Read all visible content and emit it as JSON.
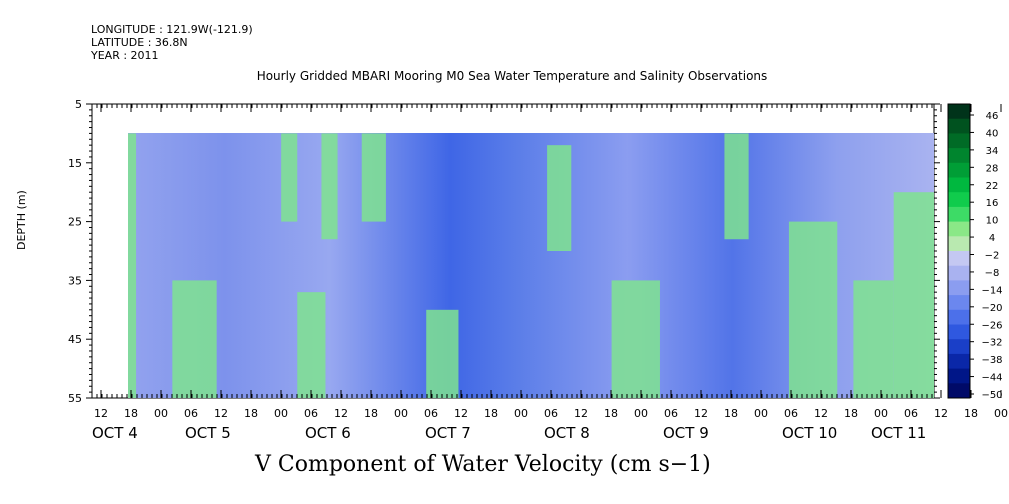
{
  "header": {
    "longitude": "LONGITUDE : 121.9W(-121.9)",
    "latitude": "LATITUDE : 36.8N",
    "year": "YEAR : 2011"
  },
  "chart_data": {
    "type": "heatmap",
    "title": "Hourly Gridded MBARI Mooring M0 Sea Water Temperature and Salinity Observations",
    "variable_title": "V Component of Water Velocity (cm s−1)",
    "ylabel": "DEPTH (m)",
    "ylim": [
      5,
      55
    ],
    "y_inverted": true,
    "y_ticks": [
      5,
      15,
      25,
      35,
      45,
      55
    ],
    "data_depth_range": [
      10,
      55
    ],
    "hour_ticks": [
      "12",
      "18",
      "00",
      "06",
      "12",
      "18",
      "00",
      "06",
      "12",
      "18",
      "00",
      "06",
      "12",
      "18",
      "00",
      "06",
      "12",
      "18",
      "00",
      "06",
      "12",
      "18",
      "00",
      "06",
      "12",
      "18",
      "00",
      "06",
      "12",
      "18",
      "00",
      "06"
    ],
    "day_labels": [
      "OCT  4",
      "OCT  5",
      "OCT  6",
      "OCT  7",
      "OCT  8",
      "OCT  9",
      "OCT 10",
      "OCT 11"
    ],
    "colorbar": {
      "labels": [
        "46",
        "40",
        "34",
        "28",
        "22",
        "16",
        "10",
        "4",
        "−2",
        "−8",
        "−14",
        "−20",
        "−26",
        "−32",
        "−38",
        "−44",
        "−50"
      ],
      "colors": [
        "#00331a",
        "#00521f",
        "#006b26",
        "#00852e",
        "#009e36",
        "#00b83f",
        "#10cc4c",
        "#3ddb66",
        "#8ae887",
        "#b9e9b0",
        "#c4c8f2",
        "#a9b2f0",
        "#8b9df0",
        "#6b87ef",
        "#4c70ea",
        "#2f58e0",
        "#1a3fc8",
        "#0a27a8",
        "#001688",
        "#000a68"
      ]
    },
    "green_patches": [
      {
        "x": [
          0.0,
          0.01
        ],
        "depth": [
          10,
          55
        ]
      },
      {
        "x": [
          0.055,
          0.11
        ],
        "depth": [
          35,
          55
        ]
      },
      {
        "x": [
          0.19,
          0.21
        ],
        "depth": [
          10,
          25
        ]
      },
      {
        "x": [
          0.21,
          0.245
        ],
        "depth": [
          37,
          55
        ]
      },
      {
        "x": [
          0.24,
          0.26
        ],
        "depth": [
          10,
          28
        ]
      },
      {
        "x": [
          0.29,
          0.32
        ],
        "depth": [
          10,
          25
        ]
      },
      {
        "x": [
          0.37,
          0.41
        ],
        "depth": [
          40,
          55
        ]
      },
      {
        "x": [
          0.52,
          0.55
        ],
        "depth": [
          12,
          30
        ]
      },
      {
        "x": [
          0.6,
          0.66
        ],
        "depth": [
          35,
          55
        ]
      },
      {
        "x": [
          0.74,
          0.77
        ],
        "depth": [
          10,
          28
        ]
      },
      {
        "x": [
          0.82,
          0.88
        ],
        "depth": [
          25,
          55
        ]
      },
      {
        "x": [
          0.9,
          0.95
        ],
        "depth": [
          35,
          55
        ]
      },
      {
        "x": [
          0.95,
          1.0
        ],
        "depth": [
          20,
          55
        ]
      }
    ]
  }
}
